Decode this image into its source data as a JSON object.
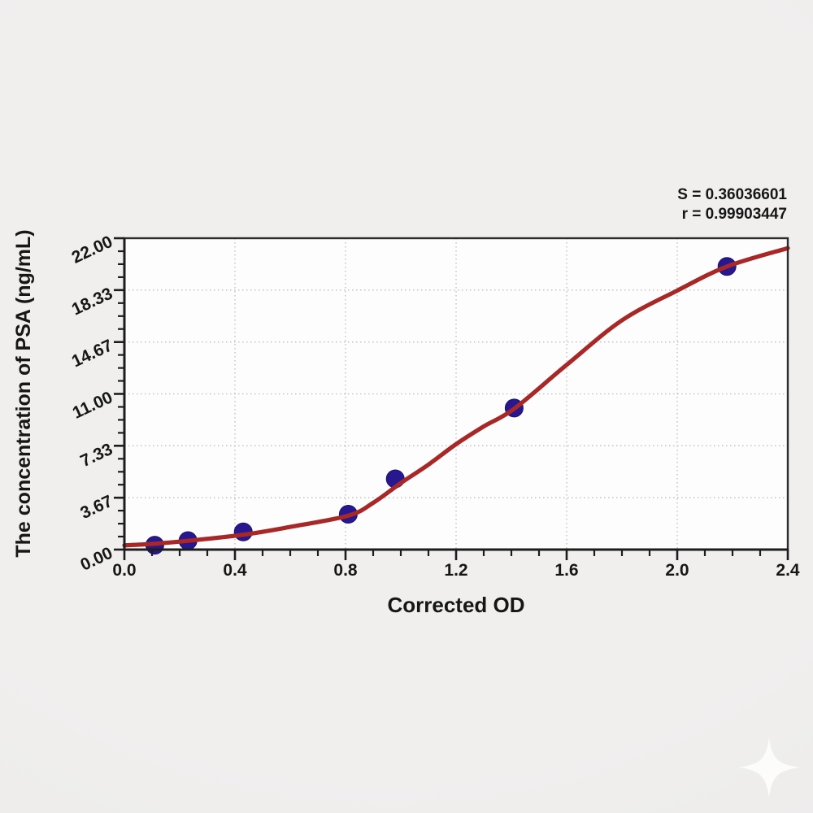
{
  "figure": {
    "description": "ELISA standard curve plot",
    "stats_s": "S = 0.36036601",
    "stats_r": "r = 0.99903447"
  },
  "chart_data": {
    "type": "scatter",
    "title": "",
    "xlabel": "Corrected OD",
    "ylabel": "The concentration of PSA (ng/mL)",
    "xlim": [
      0,
      2.4
    ],
    "ylim": [
      0,
      22
    ],
    "x_major_ticks": [
      0,
      0.4,
      0.8,
      1.2,
      1.6,
      2.0,
      2.4
    ],
    "x_tick_labels": [
      "0.0",
      "0.4",
      "0.8",
      "1.2",
      "1.6",
      "2.0",
      "2.4"
    ],
    "x_minor_step": 0.1,
    "y_major_ticks": [
      0,
      3.6667,
      7.3333,
      11,
      14.6667,
      18.3333,
      22
    ],
    "y_tick_labels": [
      "0.00",
      "3.67",
      "7.33",
      "11.00",
      "14.67",
      "18.33",
      "22.00"
    ],
    "y_minor_divisions": 4,
    "grid": "dotted gridlines at major ticks",
    "legend_position": "none",
    "annotations": {
      "s": "S = 0.36036601",
      "r": "r = 0.99903447"
    },
    "series": [
      {
        "name": "standard data points",
        "type": "scatter",
        "x": [
          0.11,
          0.23,
          0.43,
          0.81,
          0.98,
          1.41,
          2.18
        ],
        "y": [
          0.31,
          0.63,
          1.25,
          2.5,
          5,
          10,
          20
        ]
      },
      {
        "name": "fitted 4PL curve",
        "type": "line",
        "x": [
          0,
          0.1,
          0.23,
          0.43,
          0.6,
          0.81,
          0.9,
          1.0,
          1.1,
          1.2,
          1.3,
          1.41,
          1.6,
          1.8,
          2.0,
          2.18,
          2.4
        ],
        "y": [
          0.3,
          0.4,
          0.62,
          1.05,
          1.6,
          2.4,
          3.3,
          4.7,
          6.0,
          7.45,
          8.7,
          9.95,
          13.05,
          16.2,
          18.3,
          20.0,
          21.3
        ]
      }
    ],
    "colors": {
      "curve": "#a82828",
      "points": "#27188f",
      "axis": "#1d1d1d",
      "grid": "#bdbdbd",
      "text": "#161616",
      "plot_bg": "#fdfdfd",
      "page_bg": "#efeeed",
      "watermark": "#ffffff"
    },
    "watermark_icon": "sparkle-icon"
  }
}
